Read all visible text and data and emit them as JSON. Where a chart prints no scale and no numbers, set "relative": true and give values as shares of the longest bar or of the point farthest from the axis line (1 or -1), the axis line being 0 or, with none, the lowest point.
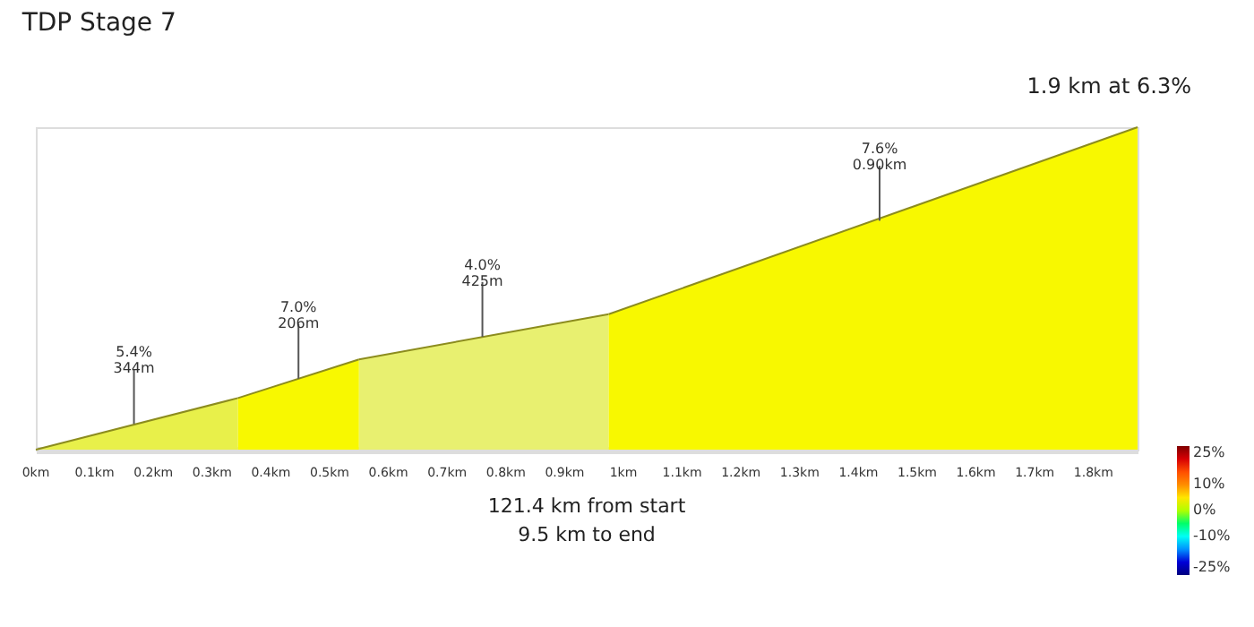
{
  "chart_data": {
    "type": "area",
    "title": "TDP Stage 7",
    "relative": true,
    "xlim": [
      0,
      1.875
    ],
    "xticks": [
      {
        "value": 0,
        "label": "0km"
      },
      {
        "value": 0.1,
        "label": "0.1km"
      },
      {
        "value": 0.2,
        "label": "0.2km"
      },
      {
        "value": 0.3,
        "label": "0.3km"
      },
      {
        "value": 0.4,
        "label": "0.4km"
      },
      {
        "value": 0.5,
        "label": "0.5km"
      },
      {
        "value": 0.6,
        "label": "0.6km"
      },
      {
        "value": 0.7,
        "label": "0.7km"
      },
      {
        "value": 0.8,
        "label": "0.8km"
      },
      {
        "value": 0.9,
        "label": "0.9km"
      },
      {
        "value": 1,
        "label": "1km"
      },
      {
        "value": 1.1,
        "label": "1.1km"
      },
      {
        "value": 1.2,
        "label": "1.2km"
      },
      {
        "value": 1.3,
        "label": "1.3km"
      },
      {
        "value": 1.4,
        "label": "1.4km"
      },
      {
        "value": 1.5,
        "label": "1.5km"
      },
      {
        "value": 1.6,
        "label": "1.6km"
      },
      {
        "value": 1.7,
        "label": "1.7km"
      },
      {
        "value": 1.8,
        "label": "1.8km"
      }
    ],
    "series": [
      {
        "color": "#e8f04a",
        "x": [
          0,
          0.344
        ],
        "values": [
          0,
          0.16
        ]
      },
      {
        "color": "#f8f800",
        "x": [
          0.344,
          0.55
        ],
        "values": [
          0.16,
          0.28
        ]
      },
      {
        "color": "#e8f070",
        "x": [
          0.55,
          0.975
        ],
        "values": [
          0.28,
          0.42
        ]
      },
      {
        "color": "#f8f800",
        "x": [
          0.975,
          1.875
        ],
        "values": [
          0.42,
          1
        ]
      }
    ],
    "annotations": [
      {
        "text": "5.4%\n344m",
        "x": 0.167,
        "y": 0.08
      },
      {
        "text": "7.0%\n206m",
        "x": 0.447,
        "y": 0.22
      },
      {
        "text": "4.0%\n425m",
        "x": 0.76,
        "y": 0.35
      },
      {
        "text": "7.6%\n0.90km",
        "x": 1.436,
        "y": 0.71
      },
      "1.9 km at 6.3%",
      "121.4 km from start\n9.5 km to end"
    ],
    "clim": [
      -25,
      25
    ],
    "cticks": [
      {
        "value": 25,
        "label": "25%"
      },
      {
        "value": 10,
        "label": "10%"
      },
      {
        "value": 0,
        "label": "0%"
      },
      {
        "value": -10,
        "label": "-10%"
      },
      {
        "value": -25,
        "label": "-25%"
      }
    ],
    "grid": false
  }
}
